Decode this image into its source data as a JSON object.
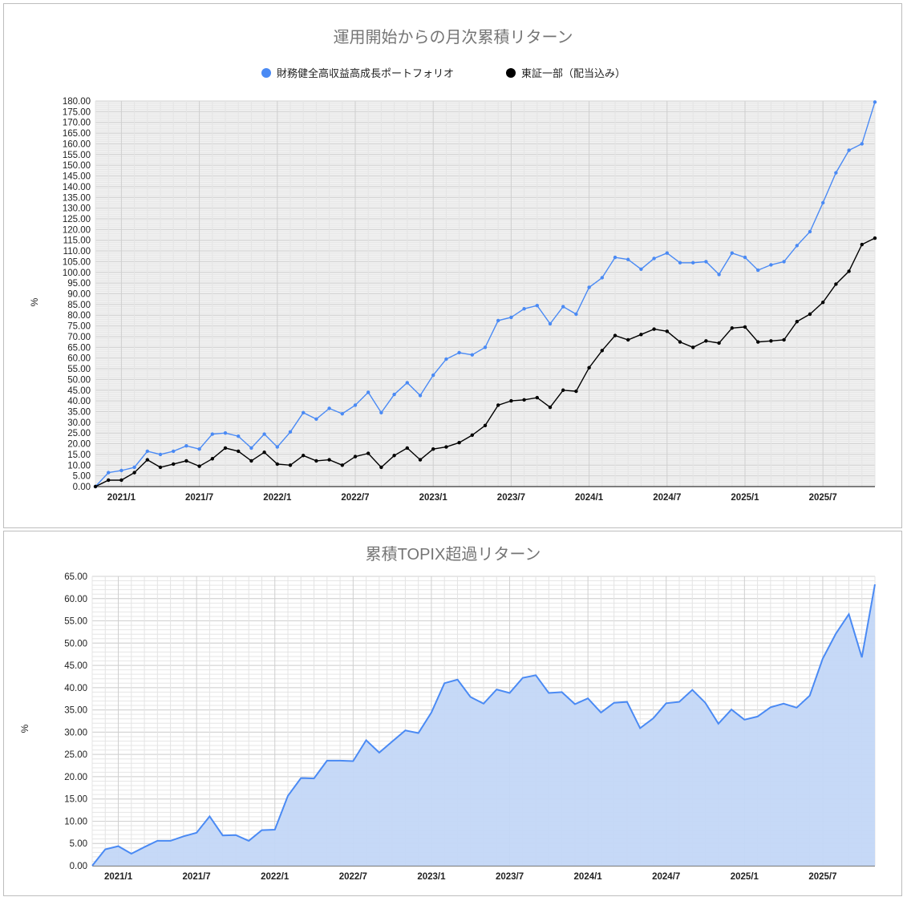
{
  "chart_data": [
    {
      "type": "line",
      "title": "運用開始からの月次累積リターン",
      "xlabel": "",
      "ylabel": "%",
      "ylim": [
        0,
        180
      ],
      "ytick_step": 5,
      "grid": true,
      "legend_position": "top",
      "x_tick_labels": [
        "2021/1",
        "2021/7",
        "2022/1",
        "2022/7",
        "2023/1",
        "2023/7",
        "2024/1",
        "2024/7",
        "2025/1",
        "2025/7"
      ],
      "x": [
        "2020/11",
        "2020/12",
        "2021/1",
        "2021/2",
        "2021/3",
        "2021/4",
        "2021/5",
        "2021/6",
        "2021/7",
        "2021/8",
        "2021/9",
        "2021/10",
        "2021/11",
        "2021/12",
        "2022/1",
        "2022/2",
        "2022/3",
        "2022/4",
        "2022/5",
        "2022/6",
        "2022/7",
        "2022/8",
        "2022/9",
        "2022/10",
        "2022/11",
        "2022/12",
        "2023/1",
        "2023/2",
        "2023/3",
        "2023/4",
        "2023/5",
        "2023/6",
        "2023/7",
        "2023/8",
        "2023/9",
        "2023/10",
        "2023/11",
        "2023/12",
        "2024/1",
        "2024/2",
        "2024/3",
        "2024/4",
        "2024/5",
        "2024/6",
        "2024/7",
        "2024/8",
        "2024/9",
        "2024/10",
        "2024/11",
        "2024/12",
        "2025/1",
        "2025/2",
        "2025/3",
        "2025/4",
        "2025/5",
        "2025/6",
        "2025/7",
        "2025/8",
        "2025/9",
        "2025/10",
        "2025/11"
      ],
      "series": [
        {
          "name": "財務健全高収益高成長ポートフォリオ",
          "color": "#4a8af4",
          "values": [
            0,
            6.5,
            7.5,
            9,
            16.5,
            15,
            16.5,
            19,
            17.5,
            24.5,
            25,
            23.5,
            18,
            24.5,
            18.5,
            25.5,
            34.5,
            31.5,
            36.5,
            34,
            38,
            44,
            34.5,
            43,
            48.5,
            42.5,
            52,
            59.5,
            62.5,
            61.5,
            65,
            77.5,
            79,
            83,
            84.5,
            76,
            84,
            80.5,
            93,
            97.5,
            107,
            106,
            101.5,
            106.5,
            109,
            104.5,
            104.5,
            105,
            99,
            109,
            107,
            101,
            103.5,
            105,
            112.5,
            119,
            132.5,
            146.5,
            157,
            160,
            179.5
          ]
        },
        {
          "name": "東証一部（配当込み）",
          "color": "#000000",
          "values": [
            0,
            3,
            3,
            6.5,
            12.5,
            9,
            10.5,
            12,
            9.5,
            13,
            18,
            16.5,
            12,
            16,
            10.5,
            10,
            14.5,
            12,
            12.5,
            10,
            14,
            15.5,
            9,
            14.5,
            18,
            12.5,
            17.5,
            18.5,
            20.5,
            24,
            28.5,
            38,
            40,
            40.5,
            41.5,
            37,
            45,
            44.5,
            55.5,
            63.5,
            70.5,
            68.5,
            71,
            73.5,
            72.5,
            67.5,
            65,
            68,
            67,
            74,
            74.5,
            67.5,
            68,
            68.5,
            77,
            80.5,
            86,
            94.5,
            100.5,
            113,
            116
          ]
        }
      ]
    },
    {
      "type": "area",
      "title": "累積TOPIX超過リターン",
      "xlabel": "",
      "ylabel": "%",
      "ylim": [
        0,
        65
      ],
      "ytick_step": 5,
      "grid": true,
      "legend_position": "none",
      "x_tick_labels": [
        "2021/1",
        "2021/7",
        "2022/1",
        "2022/7",
        "2023/1",
        "2023/7",
        "2024/1",
        "2024/7",
        "2025/1",
        "2025/7"
      ],
      "x": [
        "2020/11",
        "2020/12",
        "2021/1",
        "2021/2",
        "2021/3",
        "2021/4",
        "2021/5",
        "2021/6",
        "2021/7",
        "2021/8",
        "2021/9",
        "2021/10",
        "2021/11",
        "2021/12",
        "2022/1",
        "2022/2",
        "2022/3",
        "2022/4",
        "2022/5",
        "2022/6",
        "2022/7",
        "2022/8",
        "2022/9",
        "2022/10",
        "2022/11",
        "2022/12",
        "2023/1",
        "2023/2",
        "2023/3",
        "2023/4",
        "2023/5",
        "2023/6",
        "2023/7",
        "2023/8",
        "2023/9",
        "2023/10",
        "2023/11",
        "2023/12",
        "2024/1",
        "2024/2",
        "2024/3",
        "2024/4",
        "2024/5",
        "2024/6",
        "2024/7",
        "2024/8",
        "2024/9",
        "2024/10",
        "2024/11",
        "2024/12",
        "2025/1",
        "2025/2",
        "2025/3",
        "2025/4",
        "2025/5",
        "2025/6",
        "2025/7",
        "2025/8",
        "2025/9",
        "2025/10",
        "2025/11"
      ],
      "series": [
        {
          "name": "累積TOPIX超過リターン",
          "color": "#4a8af4",
          "fill": "#c3d7f7",
          "values": [
            0,
            3.7,
            4.4,
            2.7,
            4.2,
            5.6,
            5.6,
            6.6,
            7.4,
            11.1,
            6.8,
            6.9,
            5.6,
            8.0,
            8.1,
            15.7,
            19.7,
            19.6,
            23.6,
            23.6,
            23.5,
            28.2,
            25.4,
            27.9,
            30.4,
            29.8,
            34.4,
            41.0,
            41.8,
            37.9,
            36.4,
            39.6,
            38.8,
            42.2,
            42.8,
            38.8,
            39.0,
            36.3,
            37.6,
            34.4,
            36.6,
            36.8,
            30.9,
            33.1,
            36.5,
            36.8,
            39.5,
            36.6,
            31.9,
            35.1,
            32.8,
            33.5,
            35.6,
            36.4,
            35.5,
            38.2,
            46.5,
            52.1,
            56.5,
            46.8,
            63.2
          ]
        }
      ]
    }
  ],
  "top": {
    "title": "運用開始からの月次累積リターン",
    "ylabel": "%",
    "legend": [
      {
        "label": "財務健全高収益高成長ポートフォリオ",
        "color": "#4a8af4"
      },
      {
        "label": "東証一部（配当込み）",
        "color": "#000000"
      }
    ]
  },
  "bottom": {
    "title": "累積TOPIX超過リターン",
    "ylabel": "%"
  }
}
